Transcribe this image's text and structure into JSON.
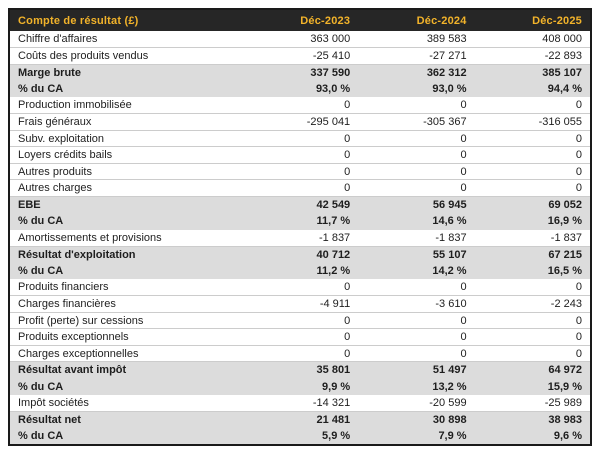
{
  "title": "Compte de résultat (£)",
  "table": {
    "header": {
      "label_column": "Compte de résultat (£)",
      "period_columns": [
        "Déc-2023",
        "Déc-2024",
        "Déc-2025"
      ]
    },
    "rows": [
      {
        "label": "Chiffre d'affaires",
        "values": [
          "363 000",
          "389 583",
          "408 000"
        ],
        "emphasis": false
      },
      {
        "label": "Coûts des produits vendus",
        "values": [
          "-25 410",
          "-27 271",
          "-22 893"
        ],
        "emphasis": false
      },
      {
        "label": "Marge brute",
        "values": [
          "337 590",
          "362 312",
          "385 107"
        ],
        "emphasis": true
      },
      {
        "label": "% du CA",
        "values": [
          "93,0 %",
          "93,0 %",
          "94,4 %"
        ],
        "emphasis": true
      },
      {
        "label": "Production immobilisée",
        "values": [
          "0",
          "0",
          "0"
        ],
        "emphasis": false
      },
      {
        "label": "Frais généraux",
        "values": [
          "-295 041",
          "-305 367",
          "-316 055"
        ],
        "emphasis": false
      },
      {
        "label": "Subv. exploitation",
        "values": [
          "0",
          "0",
          "0"
        ],
        "emphasis": false
      },
      {
        "label": "Loyers crédits bails",
        "values": [
          "0",
          "0",
          "0"
        ],
        "emphasis": false
      },
      {
        "label": "Autres produits",
        "values": [
          "0",
          "0",
          "0"
        ],
        "emphasis": false
      },
      {
        "label": "Autres charges",
        "values": [
          "0",
          "0",
          "0"
        ],
        "emphasis": false
      },
      {
        "label": "EBE",
        "values": [
          "42 549",
          "56 945",
          "69 052"
        ],
        "emphasis": true
      },
      {
        "label": "% du CA",
        "values": [
          "11,7 %",
          "14,6 %",
          "16,9 %"
        ],
        "emphasis": true
      },
      {
        "label": "Amortissements et provisions",
        "values": [
          "-1 837",
          "-1 837",
          "-1 837"
        ],
        "emphasis": false
      },
      {
        "label": "Résultat d'exploitation",
        "values": [
          "40 712",
          "55 107",
          "67 215"
        ],
        "emphasis": true
      },
      {
        "label": "% du CA",
        "values": [
          "11,2 %",
          "14,2 %",
          "16,5 %"
        ],
        "emphasis": true
      },
      {
        "label": "Produits financiers",
        "values": [
          "0",
          "0",
          "0"
        ],
        "emphasis": false
      },
      {
        "label": "Charges financières",
        "values": [
          "-4 911",
          "-3 610",
          "-2 243"
        ],
        "emphasis": false
      },
      {
        "label": "Profit (perte) sur cessions",
        "values": [
          "0",
          "0",
          "0"
        ],
        "emphasis": false
      },
      {
        "label": "Produits exceptionnels",
        "values": [
          "0",
          "0",
          "0"
        ],
        "emphasis": false
      },
      {
        "label": "Charges exceptionnelles",
        "values": [
          "0",
          "0",
          "0"
        ],
        "emphasis": false
      },
      {
        "label": "Résultat avant impôt",
        "values": [
          "35 801",
          "51 497",
          "64 972"
        ],
        "emphasis": true
      },
      {
        "label": "% du CA",
        "values": [
          "9,9 %",
          "13,2 %",
          "15,9 %"
        ],
        "emphasis": true
      },
      {
        "label": "Impôt sociétés",
        "values": [
          "-14 321",
          "-20 599",
          "-25 989"
        ],
        "emphasis": false
      },
      {
        "label": "Résultat net",
        "values": [
          "21 481",
          "30 898",
          "38 983"
        ],
        "emphasis": true
      },
      {
        "label": "% du CA",
        "values": [
          "5,9 %",
          "7,9 %",
          "9,6 %"
        ],
        "emphasis": true
      }
    ]
  },
  "colors": {
    "header_bg": "#262626",
    "header_text": "#f2b32a",
    "highlight_row_bg": "#dcdcdc",
    "row_border": "#cccccc",
    "outer_border": "#1a1a1a",
    "body_text": "#1e1e1e",
    "page_bg": "#ffffff"
  }
}
